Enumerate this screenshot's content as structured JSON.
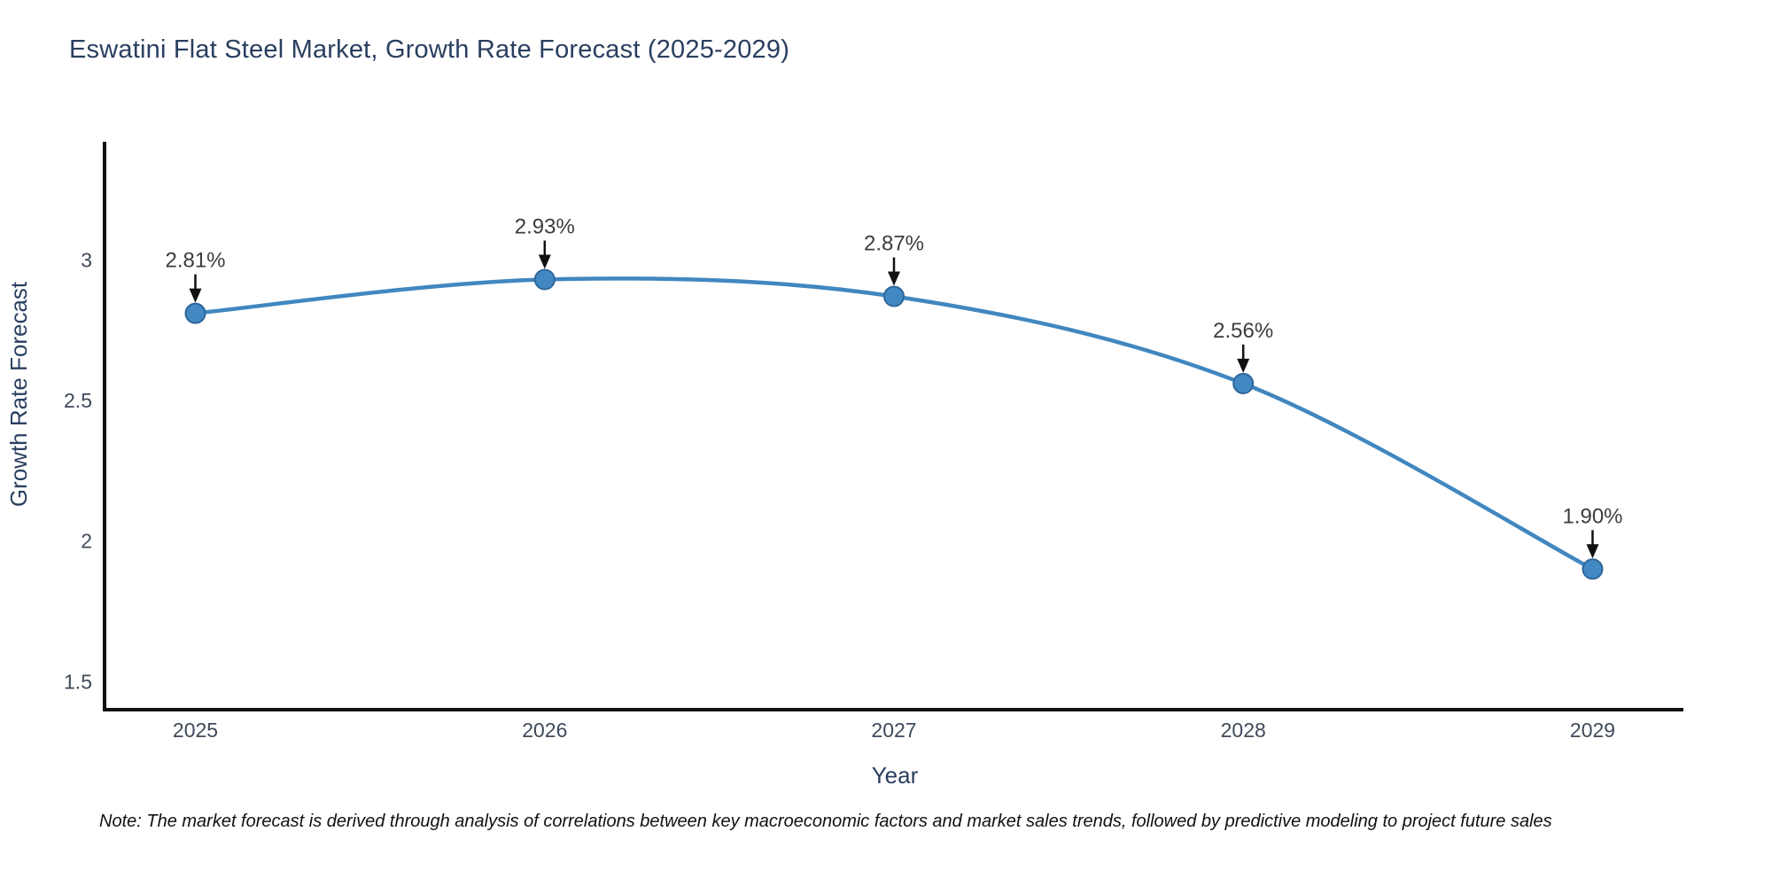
{
  "title": "Eswatini Flat Steel Market, Growth Rate Forecast (2025-2029)",
  "note": "Note: The market forecast is derived through analysis of correlations between key macroeconomic factors and market sales trends, followed by predictive modeling to project future sales",
  "chart_data": {
    "type": "line",
    "title": "Eswatini Flat Steel Market, Growth Rate Forecast (2025-2029)",
    "x": [
      2025,
      2026,
      2027,
      2028,
      2029
    ],
    "series": [
      {
        "name": "Growth Rate Forecast",
        "values": [
          2.81,
          2.93,
          2.87,
          2.56,
          1.9
        ]
      }
    ],
    "point_labels": [
      "2.81%",
      "2.93%",
      "2.87%",
      "2.56%",
      "1.90%"
    ],
    "xlabel": "Year",
    "ylabel": "Growth Rate Forecast",
    "xtick_labels": [
      "2025",
      "2026",
      "2027",
      "2028",
      "2029"
    ],
    "yticks": [
      3,
      2.5,
      2,
      1.5
    ],
    "ytick_labels": [
      "3",
      "2.5",
      "2",
      "1.5"
    ],
    "xlim": [
      2024.74,
      2029.26
    ],
    "ylim": [
      1.4,
      3.42
    ],
    "grid": false,
    "legend": "none",
    "line_shape": "spline"
  },
  "colors": {
    "line": "#4187c0",
    "marker_fill": "#4289c3",
    "marker_edge": "#2f6699",
    "axis_line": "#111111",
    "title_text": "#2a3f5f",
    "tick_text": "#3f4a5a",
    "annotation_text": "#3d3d3d",
    "arrow": "#111111"
  }
}
